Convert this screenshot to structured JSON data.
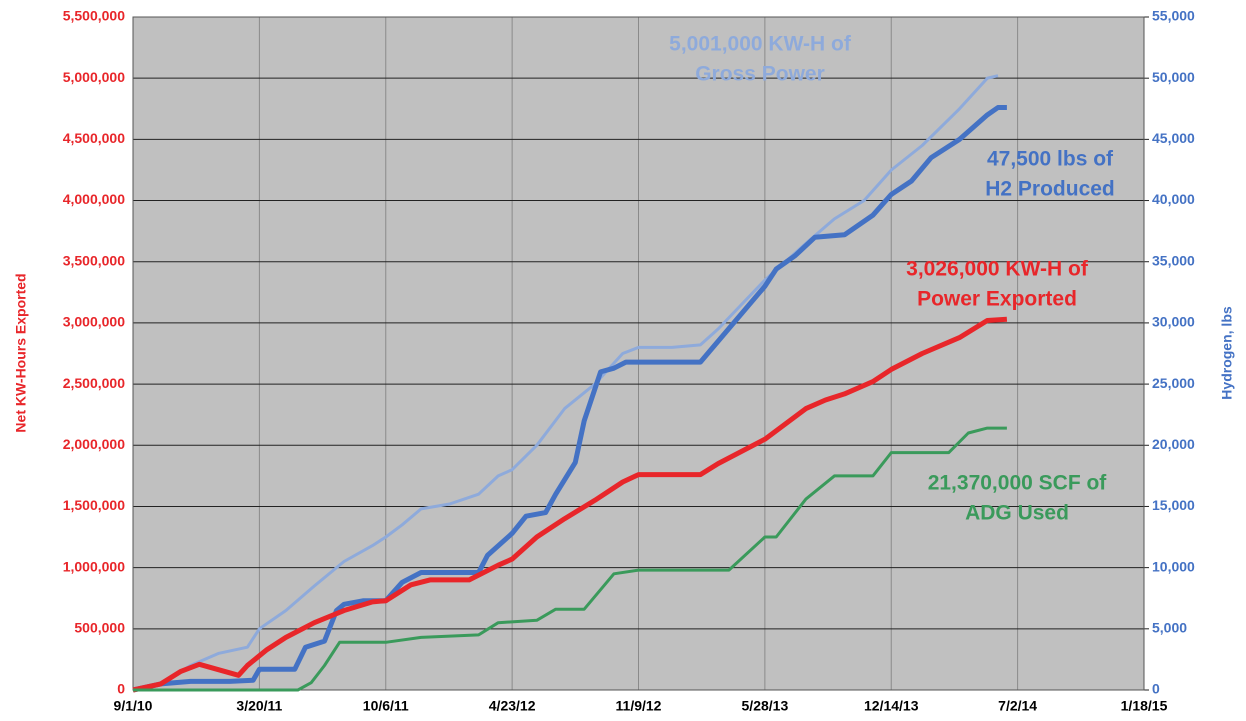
{
  "chart_data": {
    "type": "line",
    "y_label": "Net KW-Hours Exported",
    "y2_label": "Hydrogen, lbs",
    "xlim": [
      "2010-09-01",
      "2015-01-18"
    ],
    "xticks": [
      {
        "value": "2010-09-01",
        "label": "9/1/10"
      },
      {
        "value": "2011-03-20",
        "label": "3/20/11"
      },
      {
        "value": "2011-10-06",
        "label": "10/6/11"
      },
      {
        "value": "2012-04-23",
        "label": "4/23/12"
      },
      {
        "value": "2012-11-09",
        "label": "11/9/12"
      },
      {
        "value": "2013-05-28",
        "label": "5/28/13"
      },
      {
        "value": "2013-12-14",
        "label": "12/14/13"
      },
      {
        "value": "2014-07-02",
        "label": "7/2/14"
      },
      {
        "value": "2015-01-18",
        "label": "1/18/15"
      }
    ],
    "ylim": [
      0,
      5500000
    ],
    "yticks": [
      0,
      {
        "value": 500000,
        "label": "500,000"
      },
      {
        "value": 1000000,
        "label": "1,000,000"
      },
      {
        "value": 1500000,
        "label": "1,500,000"
      },
      {
        "value": 2000000,
        "label": "2,000,000"
      },
      {
        "value": 2500000,
        "label": "2,500,000"
      },
      {
        "value": 3000000,
        "label": "3,000,000"
      },
      {
        "value": 3500000,
        "label": "3,500,000"
      },
      {
        "value": 4000000,
        "label": "4,000,000"
      },
      {
        "value": 4500000,
        "label": "4,500,000"
      },
      {
        "value": 5000000,
        "label": "5,000,000"
      },
      {
        "value": 5500000,
        "label": "5,500,000"
      }
    ],
    "y2lim": [
      0,
      55000
    ],
    "y2ticks": [
      0,
      {
        "value": 5000,
        "label": "5,000"
      },
      {
        "value": 10000,
        "label": "10,000"
      },
      {
        "value": 15000,
        "label": "15,000"
      },
      {
        "value": 20000,
        "label": "20,000"
      },
      {
        "value": 25000,
        "label": "25,000"
      },
      {
        "value": 30000,
        "label": "30,000"
      },
      {
        "value": 35000,
        "label": "35,000"
      },
      {
        "value": 40000,
        "label": "40,000"
      },
      {
        "value": 45000,
        "label": "45,000"
      },
      {
        "value": 50000,
        "label": "50,000"
      },
      {
        "value": 55000,
        "label": "55,000"
      }
    ],
    "grid": true,
    "series": [
      {
        "color": "#8eaadb",
        "width": 3,
        "x": [
          "2010-09-01",
          "2010-10-15",
          "2010-12-01",
          "2011-01-15",
          "2011-03-01",
          "2011-03-20",
          "2011-05-01",
          "2011-06-15",
          "2011-08-01",
          "2011-09-15",
          "2011-10-06",
          "2011-11-01",
          "2011-12-01",
          "2012-01-15",
          "2012-03-01",
          "2012-04-01",
          "2012-04-23",
          "2012-06-01",
          "2012-07-15",
          "2012-09-01",
          "2012-10-15",
          "2012-11-09",
          "2013-01-01",
          "2013-02-15",
          "2013-03-15",
          "2013-05-28",
          "2013-08-01",
          "2013-09-15",
          "2013-11-01",
          "2013-12-14",
          "2014-02-01",
          "2014-04-01",
          "2014-05-15",
          "2014-06-01"
        ],
        "values": [
          0,
          50000,
          200000,
          300000,
          350000,
          500000,
          650000,
          850000,
          1050000,
          1180000,
          1250000,
          1350000,
          1480000,
          1520000,
          1600000,
          1750000,
          1800000,
          2000000,
          2300000,
          2500000,
          2750000,
          2800000,
          2800000,
          2820000,
          2950000,
          3350000,
          3650000,
          3850000,
          4000000,
          4250000,
          4450000,
          4750000,
          5000000,
          5020000
        ]
      },
      {
        "color": "#4472c4",
        "width": 5,
        "axis": "y2",
        "x": [
          "2010-09-01",
          "2010-10-15",
          "2010-12-01",
          "2011-02-01",
          "2011-03-10",
          "2011-03-20",
          "2011-05-15",
          "2011-06-01",
          "2011-07-01",
          "2011-07-20",
          "2011-08-01",
          "2011-09-01",
          "2011-10-06",
          "2011-11-01",
          "2011-12-01",
          "2012-03-01",
          "2012-03-15",
          "2012-04-23",
          "2012-05-15",
          "2012-06-15",
          "2012-07-01",
          "2012-08-01",
          "2012-08-15",
          "2012-09-10",
          "2012-10-01",
          "2012-10-20",
          "2013-02-15",
          "2013-03-15",
          "2013-05-28",
          "2013-06-15",
          "2013-07-15",
          "2013-08-15",
          "2013-10-01",
          "2013-11-15",
          "2013-12-14",
          "2014-01-15",
          "2014-02-15",
          "2014-04-01",
          "2014-05-15",
          "2014-06-01",
          "2014-06-15"
        ],
        "values": [
          0,
          500,
          700,
          700,
          800,
          1700,
          1700,
          3500,
          4000,
          6500,
          7000,
          7300,
          7300,
          8800,
          9600,
          9600,
          11000,
          12800,
          14200,
          14500,
          16000,
          18600,
          22000,
          26000,
          26300,
          26800,
          26800,
          28500,
          33000,
          34400,
          35500,
          37000,
          37200,
          38800,
          40500,
          41600,
          43500,
          45000,
          47000,
          47600,
          47600
        ]
      },
      {
        "color": "#e8262a",
        "width": 5,
        "x": [
          "2010-09-01",
          "2010-10-15",
          "2010-11-15",
          "2010-12-15",
          "2011-02-15",
          "2011-03-01",
          "2011-04-01",
          "2011-05-01",
          "2011-06-15",
          "2011-08-01",
          "2011-09-15",
          "2011-10-06",
          "2011-11-15",
          "2011-12-15",
          "2012-02-15",
          "2012-04-01",
          "2012-04-23",
          "2012-06-01",
          "2012-07-15",
          "2012-09-01",
          "2012-10-15",
          "2012-11-09",
          "2013-02-15",
          "2013-03-15",
          "2013-05-28",
          "2013-08-01",
          "2013-09-01",
          "2013-10-01",
          "2013-11-15",
          "2013-12-14",
          "2014-02-01",
          "2014-04-01",
          "2014-05-15",
          "2014-06-15"
        ],
        "values": [
          0,
          50000,
          150000,
          210000,
          120000,
          200000,
          330000,
          430000,
          550000,
          650000,
          720000,
          730000,
          860000,
          900000,
          900000,
          1020000,
          1070000,
          1250000,
          1400000,
          1550000,
          1700000,
          1760000,
          1760000,
          1850000,
          2050000,
          2300000,
          2370000,
          2420000,
          2520000,
          2620000,
          2750000,
          2880000,
          3020000,
          3030000
        ]
      },
      {
        "color": "#3a9a5b",
        "width": 3,
        "axis": "y2",
        "x": [
          "2010-09-01",
          "2011-05-20",
          "2011-06-10",
          "2011-07-01",
          "2011-07-25",
          "2011-10-06",
          "2011-12-01",
          "2012-03-01",
          "2012-04-01",
          "2012-06-01",
          "2012-07-01",
          "2012-08-15",
          "2012-10-01",
          "2012-11-09",
          "2013-04-01",
          "2013-05-28",
          "2013-06-15",
          "2013-08-01",
          "2013-09-15",
          "2013-11-15",
          "2013-12-14",
          "2014-03-15",
          "2014-04-15",
          "2014-05-15",
          "2014-06-15"
        ],
        "values": [
          0,
          0,
          600,
          2000,
          3900,
          3900,
          4300,
          4500,
          5500,
          5700,
          6600,
          6600,
          9500,
          9800,
          9800,
          12500,
          12500,
          15600,
          17500,
          17500,
          19400,
          19400,
          21000,
          21400,
          21400
        ]
      }
    ],
    "annotations": [
      {
        "lines": [
          "5,001,000 KW-H of",
          "Gross Power"
        ],
        "color": "#8eaadb"
      },
      {
        "lines": [
          "47,500 lbs of",
          "H2 Produced"
        ],
        "color": "#4472c4"
      },
      {
        "lines": [
          "3,026,000 KW-H of",
          "Power Exported"
        ],
        "color": "#e8262a"
      },
      {
        "lines": [
          "21,370,000 SCF of",
          "ADG Used"
        ],
        "color": "#3a9a5b"
      }
    ]
  }
}
